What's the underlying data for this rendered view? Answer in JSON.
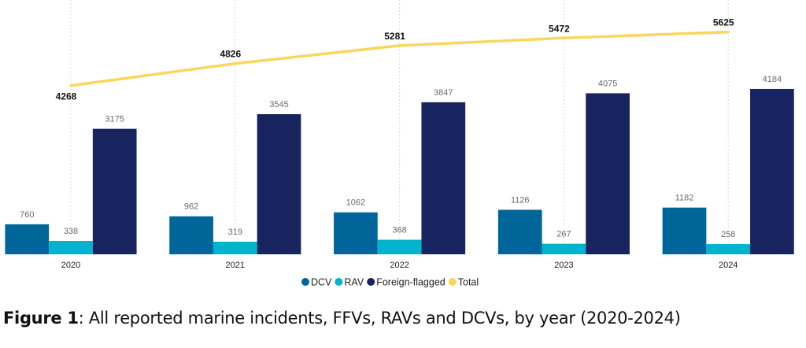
{
  "chart_data": {
    "type": "bar",
    "categories": [
      "2020",
      "2021",
      "2022",
      "2023",
      "2024"
    ],
    "series": [
      {
        "name": "DCV",
        "type": "bar",
        "color": "#006699",
        "values": [
          760,
          962,
          1062,
          1126,
          1182
        ]
      },
      {
        "name": "RAV",
        "type": "bar",
        "color": "#00B4CC",
        "values": [
          338,
          319,
          368,
          267,
          258
        ]
      },
      {
        "name": "Foreign-flagged",
        "type": "bar",
        "color": "#172460",
        "values": [
          3175,
          3545,
          3847,
          4075,
          4184
        ]
      },
      {
        "name": "Total",
        "type": "line",
        "color": "#F9D65C",
        "values": [
          4268,
          4826,
          5281,
          5472,
          5625
        ]
      }
    ],
    "ylim": [
      0,
      6400
    ],
    "grid": "dotted vertical lines at categories",
    "legend": "bottom-center",
    "data_labels": true
  },
  "caption": {
    "label": "Figure 1",
    "text": ":  All reported marine incidents, FFVs, RAVs and DCVs, by year (2020-2024)"
  }
}
